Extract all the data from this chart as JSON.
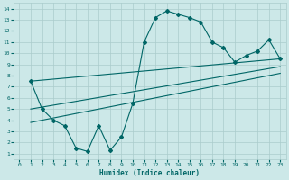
{
  "xlabel": "Humidex (Indice chaleur)",
  "bg_color": "#cce8e8",
  "grid_color": "#aacccc",
  "line_color": "#006666",
  "xlim": [
    -0.5,
    23.5
  ],
  "ylim": [
    0.5,
    14.5
  ],
  "xticks": [
    0,
    1,
    2,
    3,
    4,
    5,
    6,
    7,
    8,
    9,
    10,
    11,
    12,
    13,
    14,
    15,
    16,
    17,
    18,
    19,
    20,
    21,
    22,
    23
  ],
  "yticks": [
    1,
    2,
    3,
    4,
    5,
    6,
    7,
    8,
    9,
    10,
    11,
    12,
    13,
    14
  ],
  "series1_x": [
    1,
    2,
    3,
    4,
    5,
    6,
    7,
    8,
    9,
    10,
    11,
    12,
    13,
    14,
    15,
    16,
    17,
    18,
    19,
    20,
    21,
    22,
    23
  ],
  "series1_y": [
    7.5,
    5.0,
    4.0,
    3.5,
    1.5,
    1.2,
    3.5,
    1.3,
    2.5,
    5.5,
    11.0,
    13.2,
    13.8,
    13.5,
    13.2,
    12.8,
    11.0,
    10.5,
    9.2,
    9.8,
    10.2,
    11.2,
    9.5
  ],
  "line1_x": [
    1,
    23
  ],
  "line1_y": [
    7.5,
    9.5
  ],
  "line2_x": [
    1,
    23
  ],
  "line2_y": [
    5.0,
    8.8
  ],
  "line3_x": [
    1,
    23
  ],
  "line3_y": [
    3.8,
    8.2
  ]
}
